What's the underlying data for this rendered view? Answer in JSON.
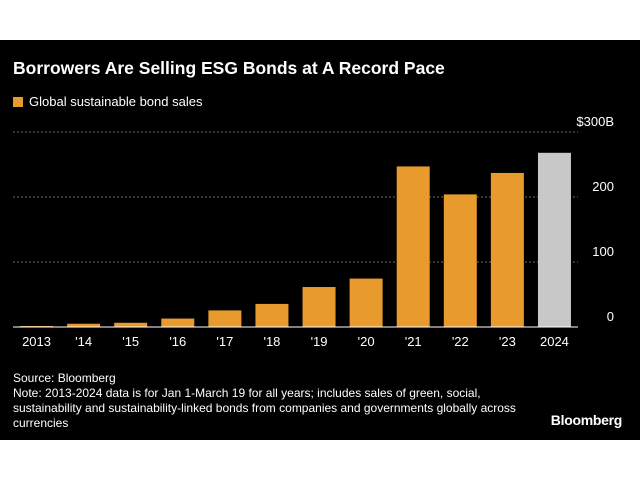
{
  "chart_data": {
    "type": "bar",
    "title": "Borrowers Are Selling ESG Bonds at A Record Pace",
    "legend": [
      {
        "name": "Global sustainable bond sales",
        "color": "#e89a2c"
      }
    ],
    "legend_placement": "top-left",
    "categories": [
      "2013",
      "'14",
      "'15",
      "'16",
      "'17",
      "'18",
      "'19",
      "'20",
      "'21",
      "'22",
      "'23",
      "2024"
    ],
    "series": [
      {
        "name": "Global sustainable bond sales",
        "values": [
          1.5,
          5,
          6.5,
          13,
          25.5,
          35.5,
          61.5,
          74.5,
          247,
          204,
          237,
          268
        ],
        "colors": [
          "#e89a2c",
          "#e89a2c",
          "#e89a2c",
          "#e89a2c",
          "#e89a2c",
          "#e89a2c",
          "#e89a2c",
          "#e89a2c",
          "#e89a2c",
          "#e89a2c",
          "#e89a2c",
          "#c8c8c8"
        ]
      }
    ],
    "ylim": [
      0,
      300
    ],
    "yticks": [
      {
        "value": 0,
        "label": "0"
      },
      {
        "value": 100,
        "label": "100"
      },
      {
        "value": 200,
        "label": "200"
      },
      {
        "value": 300,
        "label": "$300B"
      }
    ],
    "grid": true,
    "y_axis_side": "right"
  },
  "footer": {
    "source": "Source: Bloomberg",
    "note": "Note: 2013-2024 data is for Jan 1-March 19 for all years; includes sales of green, social, sustainability and sustainability-linked bonds from companies and governments globally across currencies",
    "brand": "Bloomberg"
  },
  "colors": {
    "background": "#000000",
    "bar": "#e89a2c",
    "bar_highlight": "#c8c8c8",
    "grid": "#6a6a6a",
    "text": "#ffffff"
  }
}
